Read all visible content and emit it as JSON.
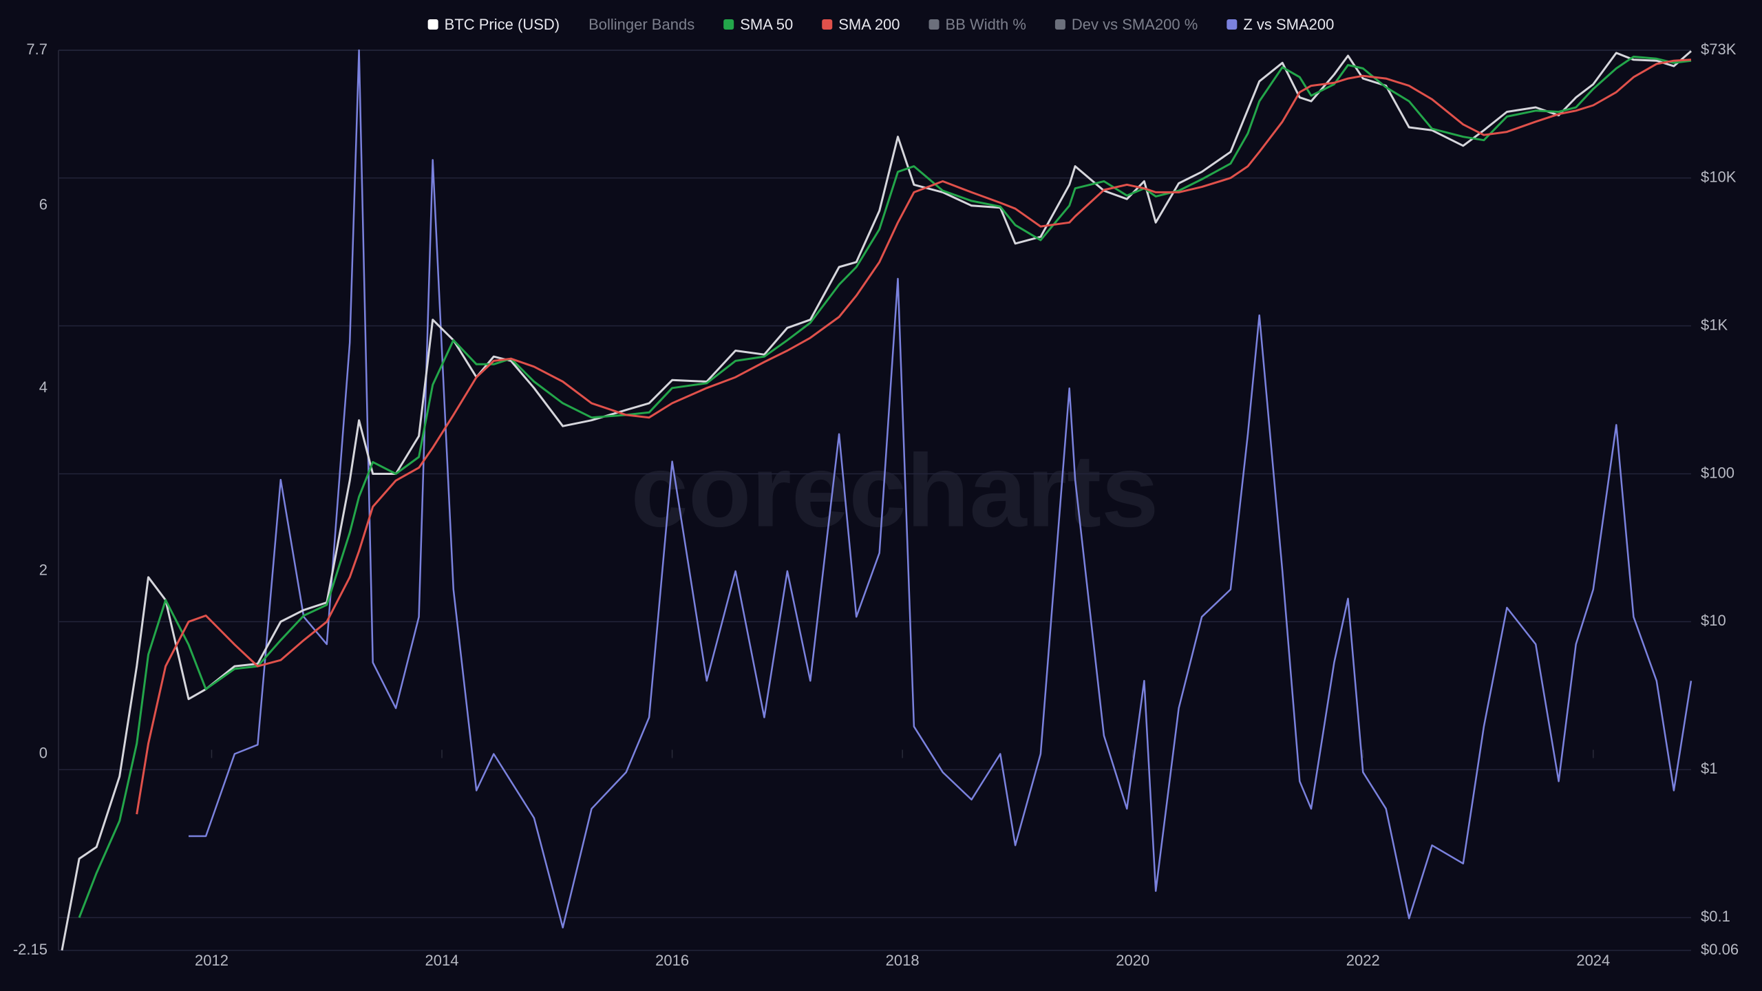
{
  "chart_data": {
    "type": "line",
    "watermark": "corecharts",
    "x": [
      2010.7,
      2010.85,
      2011.0,
      2011.2,
      2011.35,
      2011.45,
      2011.6,
      2011.8,
      2011.95,
      2012.2,
      2012.4,
      2012.6,
      2012.8,
      2013.0,
      2013.2,
      2013.28,
      2013.4,
      2013.6,
      2013.8,
      2013.92,
      2014.1,
      2014.3,
      2014.45,
      2014.6,
      2014.8,
      2015.05,
      2015.3,
      2015.6,
      2015.8,
      2016.0,
      2016.3,
      2016.55,
      2016.8,
      2017.0,
      2017.2,
      2017.45,
      2017.6,
      2017.8,
      2017.96,
      2018.1,
      2018.35,
      2018.6,
      2018.85,
      2018.98,
      2019.2,
      2019.45,
      2019.5,
      2019.75,
      2019.95,
      2020.1,
      2020.2,
      2020.4,
      2020.6,
      2020.85,
      2021.0,
      2021.1,
      2021.3,
      2021.45,
      2021.55,
      2021.75,
      2021.87,
      2022.0,
      2022.2,
      2022.4,
      2022.6,
      2022.87,
      2023.05,
      2023.25,
      2023.5,
      2023.7,
      2023.85,
      2024.0,
      2024.2,
      2024.35,
      2024.55,
      2024.7,
      2024.85
    ],
    "xlim": [
      2010.67,
      2024.85
    ],
    "xticks": [
      2012,
      2014,
      2016,
      2018,
      2020,
      2022,
      2024
    ],
    "ylim": [
      -2.15,
      7.7
    ],
    "yticks": [
      -2.15,
      0,
      2,
      4,
      6,
      7.7
    ],
    "y2lim": [
      0.06,
      73000
    ],
    "y2scale": "log",
    "y2ticks": [
      {
        "value": 0.06,
        "label": "$0.06"
      },
      {
        "value": 0.1,
        "label": "$0.1"
      },
      {
        "value": 1,
        "label": "$1"
      },
      {
        "value": 10,
        "label": "$10"
      },
      {
        "value": 100,
        "label": "$100"
      },
      {
        "value": 1000,
        "label": "$1K"
      },
      {
        "value": 10000,
        "label": "$10K"
      },
      {
        "value": 73000,
        "label": "$73K"
      }
    ],
    "grid": true,
    "legend": "top",
    "series": [
      {
        "name": "BTC Price (USD)",
        "color": "#d6d6dc",
        "axis": "y2",
        "visible": true,
        "values": [
          0.06,
          0.25,
          0.3,
          0.9,
          5,
          20,
          14,
          3,
          3.5,
          5,
          5.2,
          10,
          12,
          13.5,
          90,
          230,
          100,
          100,
          180,
          1100,
          800,
          450,
          620,
          580,
          380,
          210,
          230,
          270,
          300,
          430,
          420,
          680,
          640,
          970,
          1100,
          2500,
          2700,
          6000,
          19000,
          9000,
          8000,
          6500,
          6300,
          3600,
          4000,
          9000,
          12000,
          8200,
          7200,
          9500,
          5000,
          9200,
          11000,
          15000,
          29000,
          45000,
          60000,
          35000,
          33000,
          50000,
          67000,
          47000,
          42000,
          22000,
          21000,
          16500,
          21000,
          28000,
          30000,
          26500,
          35000,
          43000,
          70000,
          63000,
          62000,
          57000,
          72000
        ]
      },
      {
        "name": "Bollinger Bands",
        "visible": false
      },
      {
        "name": "SMA 50",
        "color": "#23a64a",
        "axis": "y2",
        "visible": true,
        "values": [
          null,
          0.1,
          0.2,
          0.45,
          1.5,
          6,
          14,
          7,
          3.5,
          4.8,
          5,
          7.5,
          11,
          13,
          40,
          70,
          120,
          100,
          130,
          400,
          800,
          550,
          550,
          600,
          420,
          300,
          240,
          250,
          260,
          380,
          410,
          580,
          620,
          800,
          1050,
          1900,
          2500,
          4500,
          11000,
          12000,
          8200,
          7000,
          6400,
          4800,
          3800,
          6500,
          8500,
          9500,
          7600,
          8500,
          7500,
          8200,
          9800,
          12500,
          20000,
          33000,
          56000,
          48000,
          36000,
          43000,
          58000,
          55000,
          41000,
          33000,
          21500,
          19000,
          18000,
          26000,
          28500,
          28000,
          30000,
          40000,
          55000,
          66000,
          64000,
          60000,
          62000
        ]
      },
      {
        "name": "SMA 200",
        "color": "#e0514b",
        "axis": "y2",
        "visible": true,
        "values": [
          null,
          null,
          null,
          null,
          0.5,
          1.5,
          5,
          10,
          11,
          7,
          5,
          5.5,
          7.5,
          10,
          20,
          30,
          60,
          90,
          110,
          150,
          250,
          450,
          580,
          600,
          530,
          420,
          300,
          250,
          240,
          300,
          380,
          450,
          570,
          680,
          830,
          1150,
          1600,
          2700,
          5000,
          8000,
          9500,
          8000,
          6800,
          6200,
          4700,
          5000,
          5500,
          8300,
          9000,
          8500,
          8000,
          8000,
          8700,
          10000,
          12000,
          15000,
          24000,
          38000,
          42000,
          44000,
          47000,
          49000,
          47000,
          42000,
          34000,
          23000,
          19500,
          20500,
          24000,
          27000,
          28500,
          31000,
          38000,
          48000,
          59000,
          62000,
          63000
        ]
      },
      {
        "name": "BB Width %",
        "color": "#6c707c",
        "visible": false
      },
      {
        "name": "Dev vs SMA200 %",
        "color": "#6c707c",
        "visible": false
      },
      {
        "name": "Z vs SMA200",
        "color": "#7b82de",
        "axis": "y",
        "visible": true,
        "values": [
          null,
          null,
          null,
          null,
          null,
          null,
          null,
          -0.9,
          -0.9,
          0.0,
          0.1,
          3.0,
          1.5,
          1.2,
          4.5,
          7.7,
          1.0,
          0.5,
          1.5,
          6.5,
          1.8,
          -0.4,
          0.0,
          -0.3,
          -0.7,
          -1.9,
          -0.6,
          -0.2,
          0.4,
          3.2,
          0.8,
          2.0,
          0.4,
          2.0,
          0.8,
          3.5,
          1.5,
          2.2,
          5.2,
          0.3,
          -0.2,
          -0.5,
          0.0,
          -1.0,
          0.0,
          4.0,
          3.0,
          0.2,
          -0.6,
          0.8,
          -1.5,
          0.5,
          1.5,
          1.8,
          3.5,
          4.8,
          2.0,
          -0.3,
          -0.6,
          1.0,
          1.7,
          -0.2,
          -0.6,
          -1.8,
          -1.0,
          -1.2,
          0.3,
          1.6,
          1.2,
          -0.3,
          1.2,
          1.8,
          3.6,
          1.5,
          0.8,
          -0.4,
          0.8
        ]
      }
    ]
  }
}
